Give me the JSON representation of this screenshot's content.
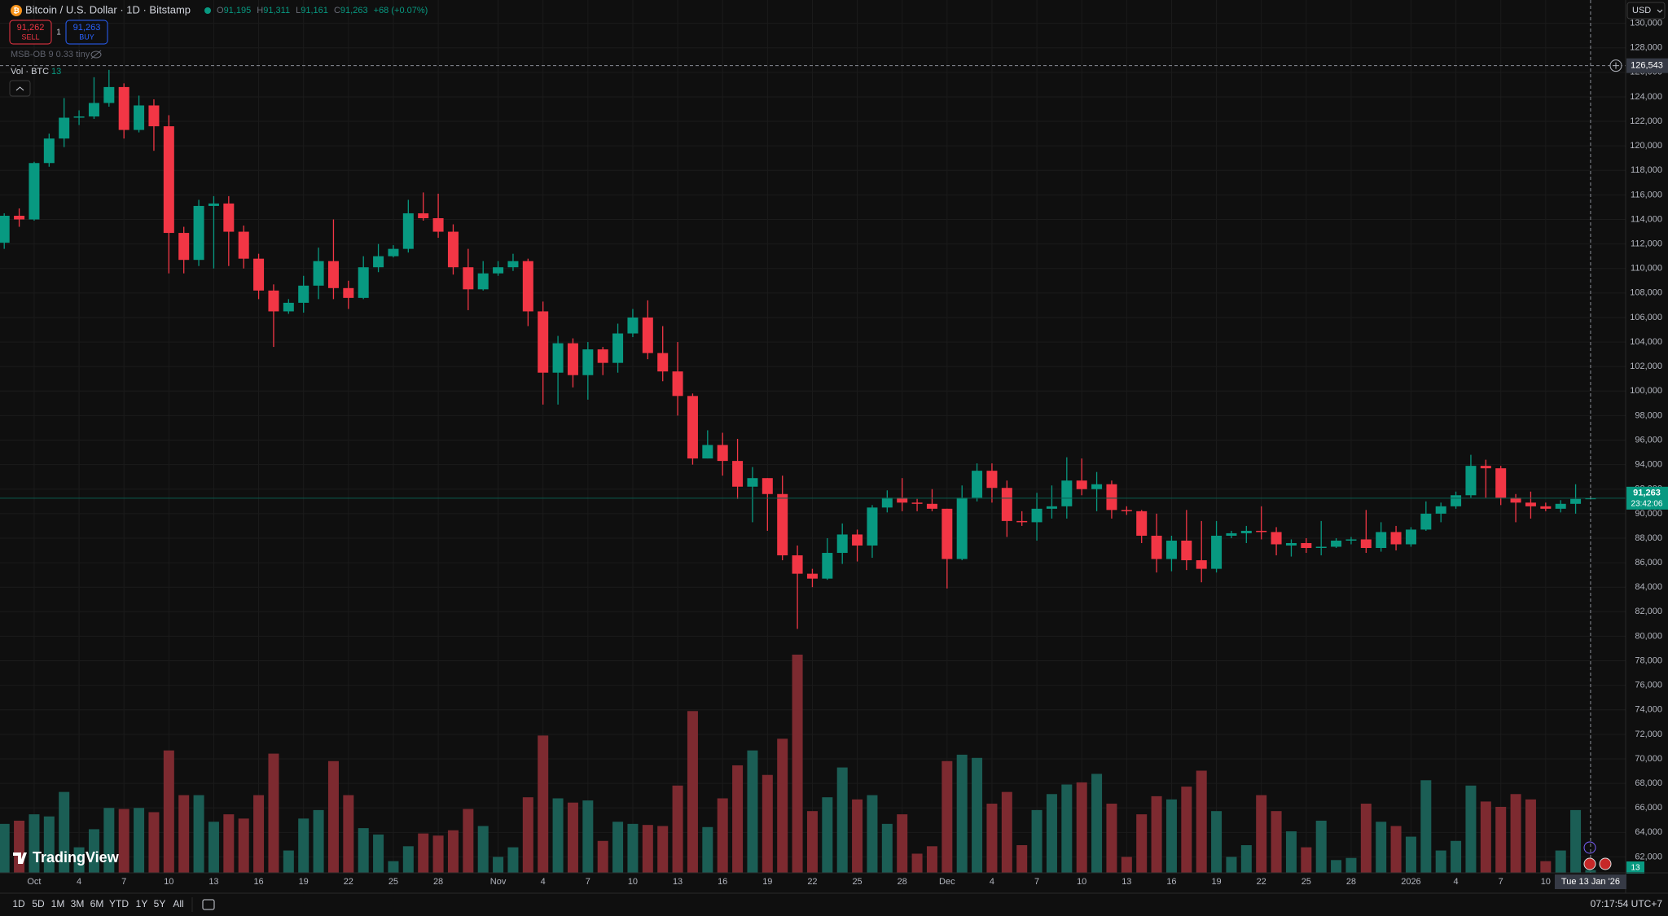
{
  "header": {
    "symbol": "Bitcoin / U.S. Dollar · 1D · Bitstamp",
    "ohlc": [
      {
        "key": "O",
        "value": "91,195"
      },
      {
        "key": "H",
        "value": "91,311"
      },
      {
        "key": "L",
        "value": "91,161"
      },
      {
        "key": "C",
        "value": "91,263"
      }
    ],
    "change": "+68 (+0.07%)"
  },
  "trade": {
    "sell_price": "91,262",
    "sell": "SELL",
    "spread": "1",
    "buy_price": "91,263",
    "buy": "BUY"
  },
  "indicator": "MSB-OB 9 0.33 tiny",
  "volume_legend": "Vol · BTC",
  "currency": "USD",
  "ranges": [
    "1D",
    "5D",
    "1M",
    "3M",
    "6M",
    "YTD",
    "1Y",
    "5Y",
    "All"
  ],
  "clock": "07:17:54 UTC+7",
  "logo": "TradingView",
  "chart_data": {
    "type": "candlestick",
    "categories": [
      null,
      null,
      "Oct",
      null,
      null,
      "4",
      null,
      null,
      "7",
      null,
      null,
      "10",
      null,
      null,
      "13",
      null,
      null,
      "16",
      null,
      null,
      "19",
      null,
      null,
      "22",
      null,
      null,
      "25",
      null,
      null,
      "28",
      null,
      null,
      null,
      "Nov",
      null,
      null,
      "4",
      null,
      null,
      "7",
      null,
      null,
      "10",
      null,
      null,
      "13",
      null,
      null,
      "16",
      null,
      null,
      "19",
      null,
      null,
      "22",
      null,
      null,
      "25",
      null,
      null,
      "28",
      null,
      null,
      "Dec",
      null,
      null,
      "4",
      null,
      null,
      "7",
      null,
      null,
      "10",
      null,
      null,
      "13",
      null,
      null,
      "16",
      null,
      null,
      "19",
      null,
      null,
      "22",
      null,
      null,
      "25",
      null,
      null,
      "28",
      null,
      null,
      null,
      "2026",
      null,
      null,
      "4",
      null,
      null,
      "7",
      null,
      null,
      "10",
      null,
      null,
      null
    ],
    "open": [
      112100,
      114300,
      114000,
      118600,
      120600,
      122300,
      122400,
      123500,
      124800,
      121300,
      123300,
      121600,
      112900,
      110700,
      115100,
      115300,
      113000,
      110800,
      108200,
      106500,
      107200,
      108600,
      110600,
      108400,
      107600,
      110100,
      111000,
      111600,
      114500,
      114100,
      113000,
      110100,
      108300,
      109600,
      110100,
      110600,
      106500,
      101500,
      103900,
      101300,
      103400,
      102300,
      104700,
      106000,
      103100,
      101600,
      99600,
      94500,
      95600,
      94300,
      92200,
      92900,
      91600,
      86600,
      85100,
      84700,
      86800,
      88300,
      87400,
      90500,
      91300,
      90900,
      90800,
      90400,
      86300,
      91300,
      93500,
      92100,
      89400,
      89300,
      90400,
      90600,
      92700,
      92000,
      92400,
      90300,
      90200,
      88200,
      86300,
      87800,
      86200,
      85500,
      88200,
      88400,
      88600,
      88500,
      87400,
      87600,
      87200,
      87300,
      87800,
      87900,
      87200,
      88500,
      87500,
      88700,
      90000,
      90600,
      91500,
      93900,
      93700,
      91300,
      90900,
      90600,
      90400,
      90800,
      91195
    ],
    "high": [
      114500,
      114900,
      118700,
      121000,
      123900,
      122900,
      125600,
      126200,
      125100,
      124100,
      123800,
      122500,
      113400,
      115600,
      115900,
      115900,
      113500,
      111200,
      108700,
      107500,
      109400,
      111700,
      114000,
      109000,
      111000,
      112000,
      111900,
      115600,
      116200,
      116100,
      113600,
      111600,
      110600,
      110600,
      111200,
      110800,
      107300,
      104500,
      104300,
      104000,
      103600,
      105500,
      106700,
      107400,
      105300,
      104000,
      99800,
      96800,
      96600,
      96100,
      93800,
      92900,
      93100,
      87400,
      85500,
      88000,
      89200,
      88700,
      90700,
      91900,
      92900,
      91200,
      92000,
      90400,
      92300,
      94100,
      94100,
      92700,
      90200,
      91700,
      92300,
      94600,
      94500,
      93400,
      92700,
      90600,
      90300,
      90000,
      88200,
      90300,
      89400,
      89400,
      88600,
      89000,
      90600,
      88900,
      87900,
      88000,
      89400,
      88000,
      88100,
      90300,
      89300,
      89000,
      88900,
      91000,
      90900,
      91800,
      94800,
      94400,
      93900,
      91600,
      91800,
      90900,
      91100,
      92400,
      91311
    ],
    "low": [
      111600,
      113400,
      113900,
      118300,
      119900,
      121700,
      122200,
      123200,
      120600,
      121100,
      119600,
      109600,
      109600,
      110200,
      110000,
      110200,
      110000,
      107500,
      103600,
      106300,
      106400,
      107500,
      107500,
      106700,
      107500,
      109700,
      110900,
      111300,
      113900,
      112500,
      109500,
      106600,
      108200,
      109400,
      109800,
      105300,
      98900,
      98900,
      100300,
      99300,
      101300,
      101500,
      104400,
      102600,
      100800,
      98000,
      94000,
      94500,
      93100,
      91200,
      89300,
      88600,
      86200,
      80600,
      84000,
      84600,
      85900,
      86100,
      86400,
      90100,
      90200,
      90200,
      90200,
      83900,
      86200,
      91000,
      90900,
      88100,
      89000,
      87800,
      89600,
      89600,
      91500,
      90200,
      89600,
      89900,
      87600,
      85200,
      85300,
      85400,
      84400,
      85200,
      88000,
      87600,
      87900,
      86600,
      86500,
      86800,
      86600,
      87200,
      87500,
      86800,
      86900,
      87000,
      87300,
      88600,
      89300,
      90400,
      91300,
      91300,
      90700,
      89300,
      89600,
      90200,
      90100,
      90000,
      91161
    ],
    "close": [
      114300,
      114000,
      118600,
      120600,
      122300,
      122400,
      123500,
      124800,
      121300,
      123300,
      121600,
      112900,
      110700,
      115100,
      115300,
      113000,
      110800,
      108200,
      106500,
      107200,
      108600,
      110600,
      108400,
      107600,
      110100,
      111000,
      111600,
      114500,
      114100,
      113000,
      110100,
      108300,
      109600,
      110100,
      110600,
      106500,
      101500,
      103900,
      101300,
      103400,
      102300,
      104700,
      106000,
      103100,
      101600,
      99600,
      94500,
      95600,
      94300,
      92200,
      92900,
      91600,
      86600,
      85100,
      84700,
      86800,
      88300,
      87400,
      90500,
      91300,
      90900,
      90800,
      90400,
      86300,
      91300,
      93500,
      92100,
      89400,
      89300,
      90400,
      90600,
      92700,
      92000,
      92400,
      90300,
      90200,
      88200,
      86300,
      87800,
      86200,
      85500,
      88200,
      88400,
      88600,
      88500,
      87500,
      87600,
      87200,
      87300,
      87800,
      87900,
      87200,
      88500,
      87500,
      88700,
      90000,
      90600,
      91500,
      93900,
      93700,
      91300,
      90900,
      90600,
      90400,
      90800,
      91200,
      91263
    ],
    "volume": [
      230,
      245,
      275,
      265,
      380,
      120,
      205,
      305,
      300,
      305,
      285,
      575,
      365,
      365,
      240,
      275,
      255,
      365,
      560,
      105,
      255,
      295,
      525,
      365,
      210,
      180,
      55,
      125,
      185,
      175,
      200,
      300,
      220,
      75,
      120,
      355,
      645,
      350,
      330,
      340,
      150,
      240,
      230,
      225,
      220,
      410,
      760,
      215,
      350,
      505,
      575,
      460,
      630,
      1025,
      290,
      355,
      495,
      345,
      365,
      230,
      275,
      90,
      125,
      525,
      555,
      540,
      325,
      380,
      130,
      295,
      370,
      415,
      425,
      465,
      325,
      75,
      275,
      360,
      345,
      405,
      480,
      290,
      75,
      130,
      365,
      290,
      195,
      120,
      245,
      60,
      70,
      325,
      240,
      220,
      170,
      435,
      105,
      150,
      410,
      335,
      310,
      370,
      345,
      55,
      105,
      295,
      13
    ],
    "up_color": "#089981",
    "down_color": "#f23645",
    "volume_up_color": "#1b5e55",
    "volume_down_color": "#7d2a30",
    "ylim": [
      60700,
      131900
    ],
    "yticks": [
      {
        "value": 62000,
        "label": "62,000"
      },
      {
        "value": 64000,
        "label": "64,000"
      },
      {
        "value": 66000,
        "label": "66,000"
      },
      {
        "value": 68000,
        "label": "68,000"
      },
      {
        "value": 70000,
        "label": "70,000"
      },
      {
        "value": 72000,
        "label": "72,000"
      },
      {
        "value": 74000,
        "label": "74,000"
      },
      {
        "value": 76000,
        "label": "76,000"
      },
      {
        "value": 78000,
        "label": "78,000"
      },
      {
        "value": 80000,
        "label": "80,000"
      },
      {
        "value": 82000,
        "label": "82,000"
      },
      {
        "value": 84000,
        "label": "84,000"
      },
      {
        "value": 86000,
        "label": "86,000"
      },
      {
        "value": 88000,
        "label": "88,000"
      },
      {
        "value": 90000,
        "label": "90,000"
      },
      {
        "value": 92000,
        "label": "92,000"
      },
      {
        "value": 94000,
        "label": "94,000"
      },
      {
        "value": 96000,
        "label": "96,000"
      },
      {
        "value": 98000,
        "label": "98,000"
      },
      {
        "value": 100000,
        "label": "100,000"
      },
      {
        "value": 102000,
        "label": "102,000"
      },
      {
        "value": 104000,
        "label": "104,000"
      },
      {
        "value": 106000,
        "label": "106,000"
      },
      {
        "value": 108000,
        "label": "108,000"
      },
      {
        "value": 110000,
        "label": "110,000"
      },
      {
        "value": 112000,
        "label": "112,000"
      },
      {
        "value": 114000,
        "label": "114,000"
      },
      {
        "value": 116000,
        "label": "116,000"
      },
      {
        "value": 118000,
        "label": "118,000"
      },
      {
        "value": 120000,
        "label": "120,000"
      },
      {
        "value": 122000,
        "label": "122,000"
      },
      {
        "value": 124000,
        "label": "124,000"
      },
      {
        "value": 126000,
        "label": "126,000"
      },
      {
        "value": 128000,
        "label": "128,000"
      },
      {
        "value": 130000,
        "label": "130,000"
      }
    ],
    "grid": true,
    "last_price": {
      "value": 91263,
      "label": "91,263",
      "countdown": "23:42:06"
    },
    "crosshair": {
      "value": 126543,
      "label": "126,543",
      "date": "Tue 13 Jan '26"
    }
  }
}
